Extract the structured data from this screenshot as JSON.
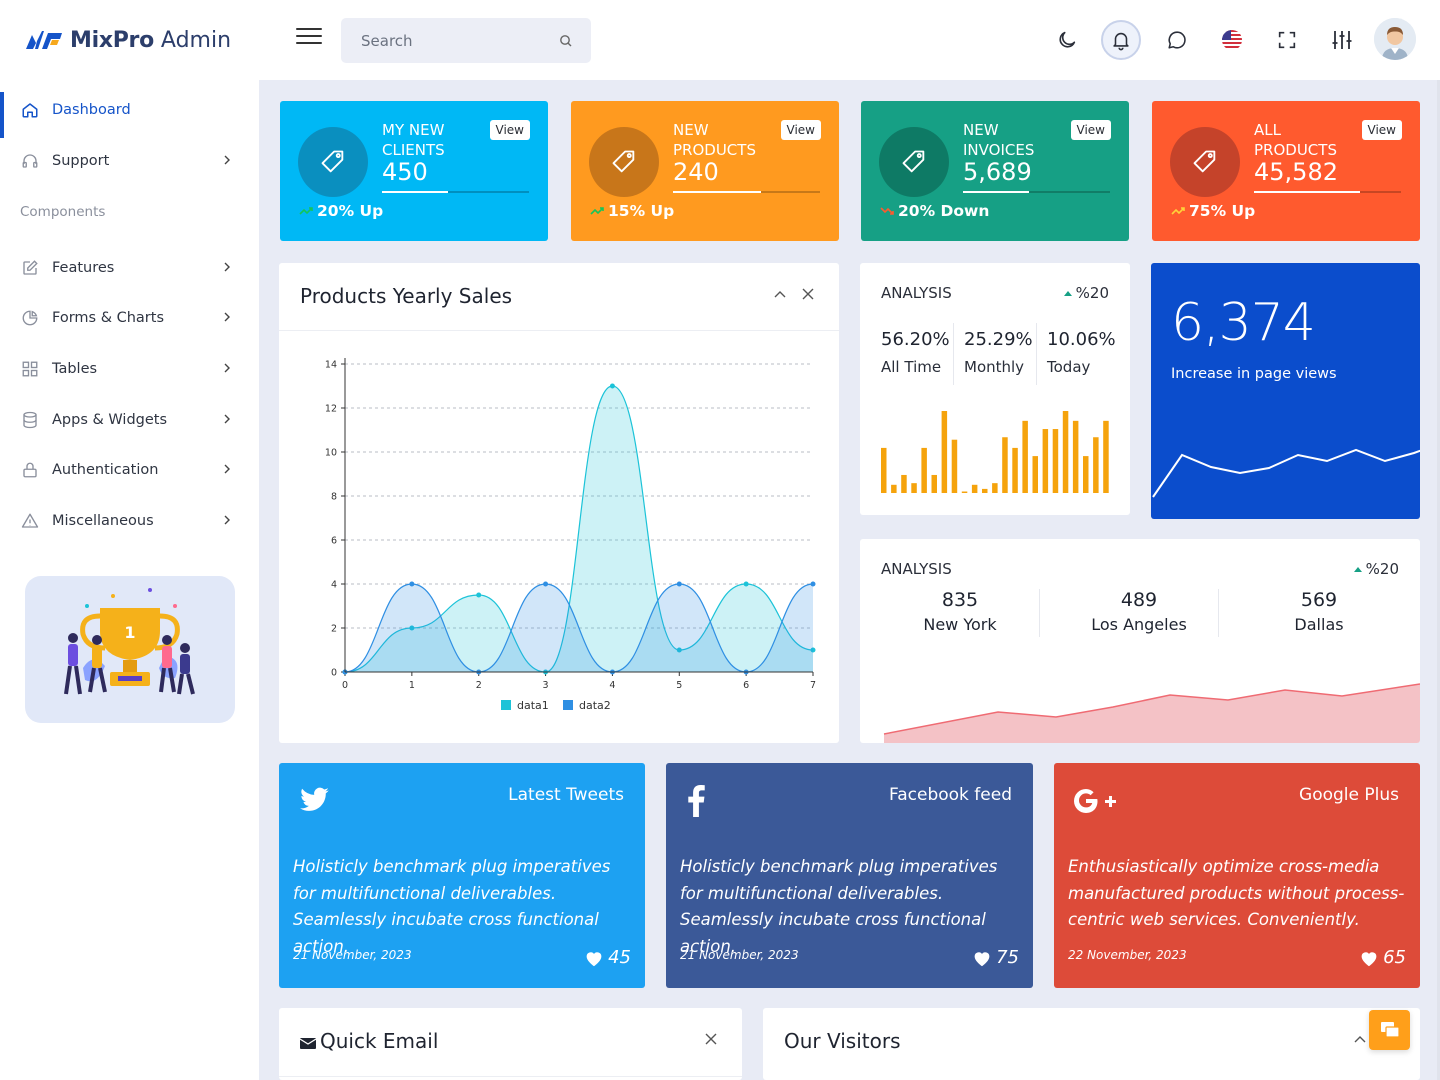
{
  "header": {
    "brand_bold": "MixPro",
    "brand_light": "Admin",
    "search_placeholder": "Search",
    "icons": [
      "moon-icon",
      "bell-icon",
      "chat-bubble-icon",
      "us-flag-icon",
      "fullscreen-icon",
      "sliders-icon"
    ]
  },
  "sidebar": {
    "items": [
      {
        "label": "Dashboard",
        "icon": "home-icon",
        "active": true
      },
      {
        "label": "Support",
        "icon": "headphones-icon"
      },
      {
        "label": "Features",
        "icon": "edit-icon"
      },
      {
        "label": "Forms & Charts",
        "icon": "pie-chart-icon"
      },
      {
        "label": "Tables",
        "icon": "grid-icon"
      },
      {
        "label": "Apps & Widgets",
        "icon": "database-icon"
      },
      {
        "label": "Authentication",
        "icon": "lock-icon"
      },
      {
        "label": "Miscellaneous",
        "icon": "warning-icon"
      }
    ],
    "section_label": "Components"
  },
  "stats": [
    {
      "title": "My New Clients",
      "value": "450",
      "view": "View",
      "trend": "20% Up",
      "progress": 0.45,
      "color": "#00b8f5",
      "circle": "#0a8fbf"
    },
    {
      "title": "New Products",
      "value": "240",
      "view": "View",
      "trend": "15% Up",
      "progress": 0.6,
      "color": "#ff9a1f",
      "circle": "#c8761a"
    },
    {
      "title": "New Invoices",
      "value": "5,689",
      "view": "View",
      "trend": "20% Down",
      "progress": 0.45,
      "color": "#16a085",
      "circle": "#0e7a65"
    },
    {
      "title": "All Products",
      "value": "45,582",
      "view": "View",
      "trend": "75% Up",
      "progress": 0.72,
      "color": "#ff5a2e",
      "circle": "#c5432a"
    }
  ],
  "yearly_sales": {
    "title": "Products Yearly Sales"
  },
  "chart_data": {
    "type": "area",
    "x": [
      0,
      1,
      2,
      3,
      4,
      5,
      6,
      7
    ],
    "series": [
      {
        "name": "data1",
        "values": [
          0,
          2,
          3.5,
          0,
          13,
          1,
          4,
          1
        ],
        "color": "#1cc3d8"
      },
      {
        "name": "data2",
        "values": [
          0,
          4,
          0,
          4,
          0,
          4,
          0,
          4
        ],
        "color": "#2f8fe3"
      }
    ],
    "ylim": [
      0,
      14
    ],
    "yticks": [
      0,
      2,
      4,
      6,
      8,
      10,
      12,
      14
    ],
    "xticks": [
      0,
      1,
      2,
      3,
      4,
      5,
      6,
      7
    ],
    "grid": true,
    "legend": "bottom"
  },
  "analysis1": {
    "title": "ANALYSIS",
    "change": "%20",
    "cols": [
      {
        "value": "56.20%",
        "label": "All Time"
      },
      {
        "value": "25.29%",
        "label": "Monthly"
      },
      {
        "value": "10.06%",
        "label": "Today"
      }
    ],
    "bars": [
      0.55,
      0.1,
      0.22,
      0.12,
      0.55,
      0.22,
      1.0,
      0.65,
      0.0,
      0.1,
      0.05,
      0.12,
      0.68,
      0.55,
      0.88,
      0.45,
      0.78,
      0.78,
      1.0,
      0.88,
      0.45,
      0.68,
      0.88
    ],
    "bar_color": "#f5a30c"
  },
  "page_views": {
    "value": "6,374",
    "label": "Increase in page views",
    "color": "#0b4dcc"
  },
  "analysis2": {
    "title": "ANALYSIS",
    "change": "%20",
    "cities": [
      {
        "value": "835",
        "label": "New York"
      },
      {
        "value": "489",
        "label": "Los Angeles"
      },
      {
        "value": "569",
        "label": "Dallas"
      }
    ]
  },
  "social": [
    {
      "title": "Latest Tweets",
      "icon": "twitter-icon",
      "text": "Holisticly benchmark plug imperatives for multifunctional deliverables. Seamlessly incubate cross functional action.",
      "date": "21 November, 2023",
      "likes": "45",
      "color": "#1da1f2"
    },
    {
      "title": "Facebook feed",
      "icon": "facebook-icon",
      "text": "Holisticly benchmark plug imperatives for multifunctional deliverables. Seamlessly incubate cross functional action.",
      "date": "21 November, 2023",
      "likes": "75",
      "color": "#3b5998"
    },
    {
      "title": "Google Plus",
      "icon": "google-plus-icon",
      "text": "Enthusiastically optimize cross-media manufactured products without process-centric web services. Conveniently.",
      "date": "22 November, 2023",
      "likes": "65",
      "color": "#dd4b39"
    }
  ],
  "quick_email": {
    "title": "Quick Email"
  },
  "visitors": {
    "title": "Our Visitors"
  }
}
